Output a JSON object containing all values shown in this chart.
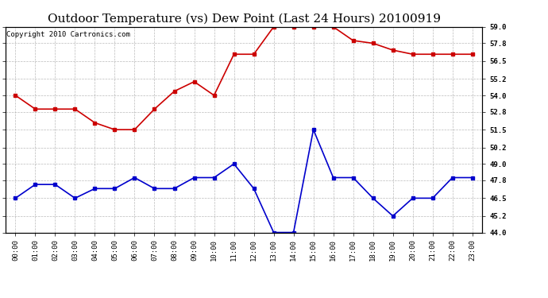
{
  "title": "Outdoor Temperature (vs) Dew Point (Last 24 Hours) 20100919",
  "subtitle": "Copyright 2010 Cartronics.com",
  "x_labels": [
    "00:00",
    "01:00",
    "02:00",
    "03:00",
    "04:00",
    "05:00",
    "06:00",
    "07:00",
    "08:00",
    "09:00",
    "10:00",
    "11:00",
    "12:00",
    "13:00",
    "14:00",
    "15:00",
    "16:00",
    "17:00",
    "18:00",
    "19:00",
    "20:00",
    "21:00",
    "22:00",
    "23:00"
  ],
  "temp_data": [
    54.0,
    53.0,
    53.0,
    53.0,
    52.0,
    51.5,
    51.5,
    53.0,
    54.3,
    55.0,
    54.0,
    57.0,
    57.0,
    59.0,
    59.0,
    59.0,
    59.0,
    58.0,
    57.8,
    57.3,
    57.0,
    57.0,
    57.0,
    57.0
  ],
  "dew_data": [
    46.5,
    47.5,
    47.5,
    46.5,
    47.2,
    47.2,
    48.0,
    47.2,
    47.2,
    48.0,
    48.0,
    49.0,
    47.2,
    44.0,
    44.0,
    51.5,
    48.0,
    48.0,
    46.5,
    45.2,
    46.5,
    46.5,
    48.0,
    48.0
  ],
  "temp_color": "#cc0000",
  "dew_color": "#0000cc",
  "ylim": [
    44.0,
    59.0
  ],
  "yticks": [
    44.0,
    45.2,
    46.5,
    47.8,
    49.0,
    50.2,
    51.5,
    52.8,
    54.0,
    55.2,
    56.5,
    57.8,
    59.0
  ],
  "bg_color": "#ffffff",
  "grid_color": "#aaaaaa",
  "title_fontsize": 11,
  "subtitle_fontsize": 6.5,
  "tick_fontsize": 6.5
}
